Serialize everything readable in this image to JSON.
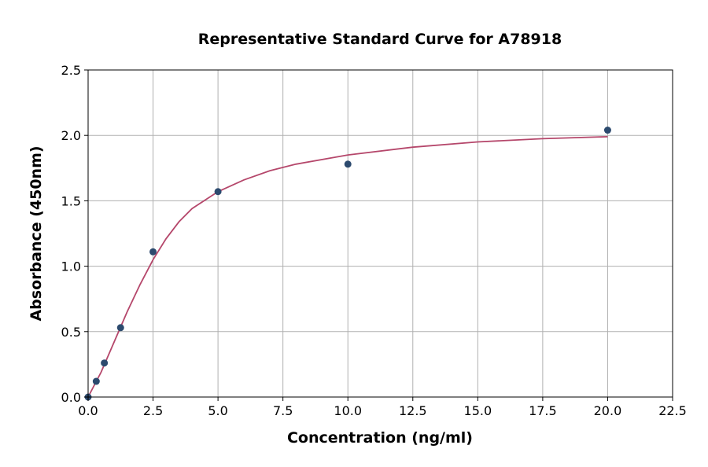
{
  "chart_data": {
    "type": "scatter",
    "title": "Representative Standard Curve for A78918",
    "xlabel": "Concentration (ng/ml)",
    "ylabel": "Absorbance (450nm)",
    "xlim": [
      0,
      22.5
    ],
    "ylim": [
      0,
      2.5
    ],
    "x_ticks": [
      "0.0",
      "2.5",
      "5.0",
      "7.5",
      "10.0",
      "12.5",
      "15.0",
      "17.5",
      "20.0",
      "22.5"
    ],
    "y_ticks": [
      "0.0",
      "0.5",
      "1.0",
      "1.5",
      "2.0",
      "2.5"
    ],
    "grid": true,
    "series": [
      {
        "kind": "points",
        "x": [
          0,
          0.313,
          0.625,
          1.25,
          2.5,
          5,
          10,
          20
        ],
        "y": [
          0.0,
          0.12,
          0.26,
          0.53,
          1.11,
          1.57,
          1.78,
          2.04
        ]
      },
      {
        "kind": "fit-curve",
        "x": [
          0,
          0.5,
          1,
          1.5,
          2,
          2.5,
          3,
          3.5,
          4,
          5,
          6,
          7,
          8,
          10,
          12.5,
          15,
          17.5,
          20
        ],
        "y": [
          0.0,
          0.19,
          0.42,
          0.65,
          0.86,
          1.05,
          1.21,
          1.34,
          1.44,
          1.57,
          1.66,
          1.73,
          1.78,
          1.85,
          1.91,
          1.95,
          1.975,
          1.99
        ]
      }
    ],
    "colors": {
      "points": "#2c4a6e",
      "curve": "#b5476b",
      "grid": "#b0b0b0"
    }
  }
}
